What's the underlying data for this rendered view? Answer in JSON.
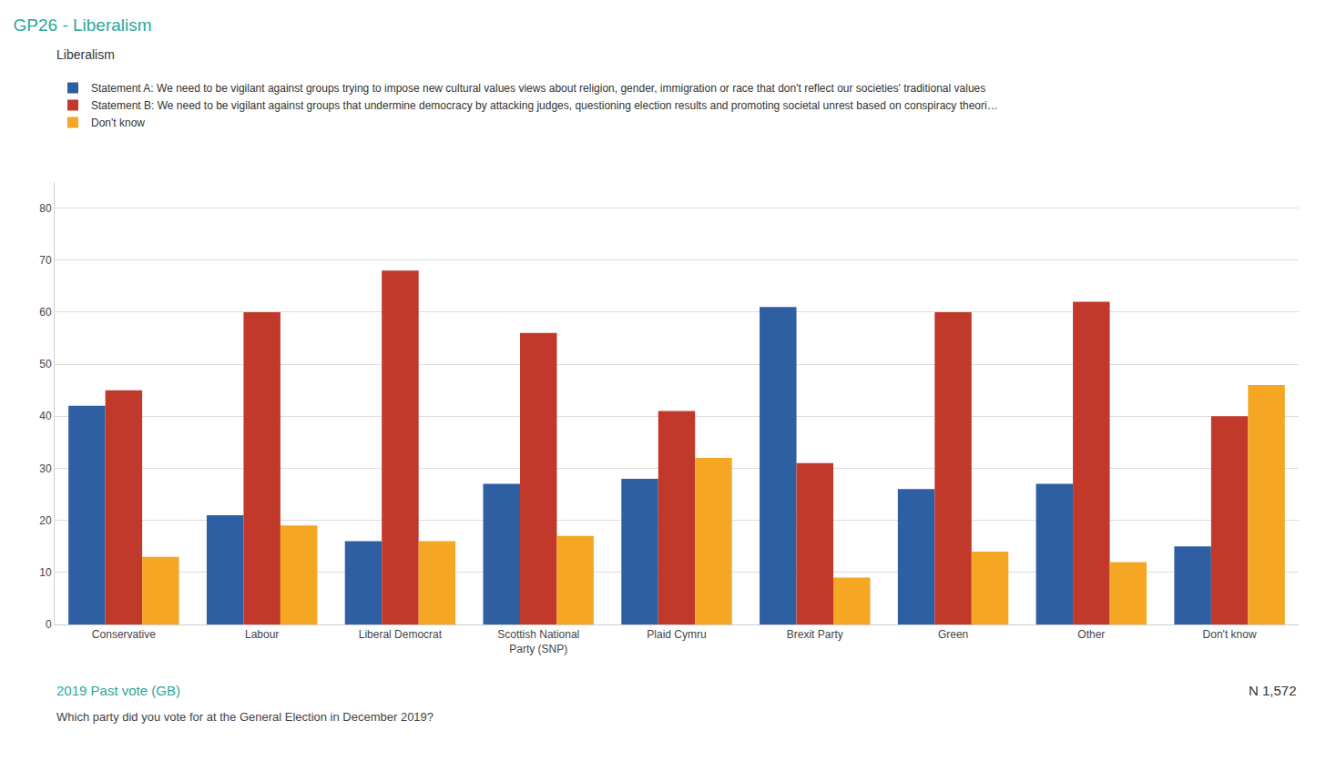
{
  "chart_data": {
    "type": "bar",
    "title": "GP26 - Liberalism",
    "subtitle": "Liberalism",
    "xlabel": "2019 Past vote (GB)",
    "annotations": [
      "N 1,572",
      "Which party did you vote for at the General Election in December 2019?"
    ],
    "categories": [
      "Conservative",
      "Labour",
      "Liberal Democrat",
      "Scottish National\nParty (SNP)",
      "Plaid Cymru",
      "Brexit Party",
      "Green",
      "Other",
      "Don't know"
    ],
    "series": [
      {
        "name": "Statement A: We need to be vigilant against groups trying to impose new cultural values views about religion, gender, immigration or race that don't reflect our societies' traditional values",
        "color": "#2E5FA3",
        "values": [
          42,
          21,
          16,
          27,
          28,
          61,
          26,
          27,
          15
        ]
      },
      {
        "name": "Statement B: We need to be vigilant against groups that undermine democracy by attacking judges, questioning election results and promoting societal unrest based on conspiracy theori…",
        "color": "#C0392B",
        "values": [
          45,
          60,
          68,
          56,
          41,
          31,
          60,
          62,
          40
        ]
      },
      {
        "name": "Don't know",
        "color": "#F5A623",
        "values": [
          13,
          19,
          16,
          17,
          32,
          9,
          14,
          12,
          46
        ]
      }
    ],
    "ylim": [
      0,
      85
    ],
    "yticks": [
      0,
      10,
      20,
      30,
      40,
      50,
      60,
      70,
      80
    ],
    "grid": true,
    "legend": "top"
  }
}
